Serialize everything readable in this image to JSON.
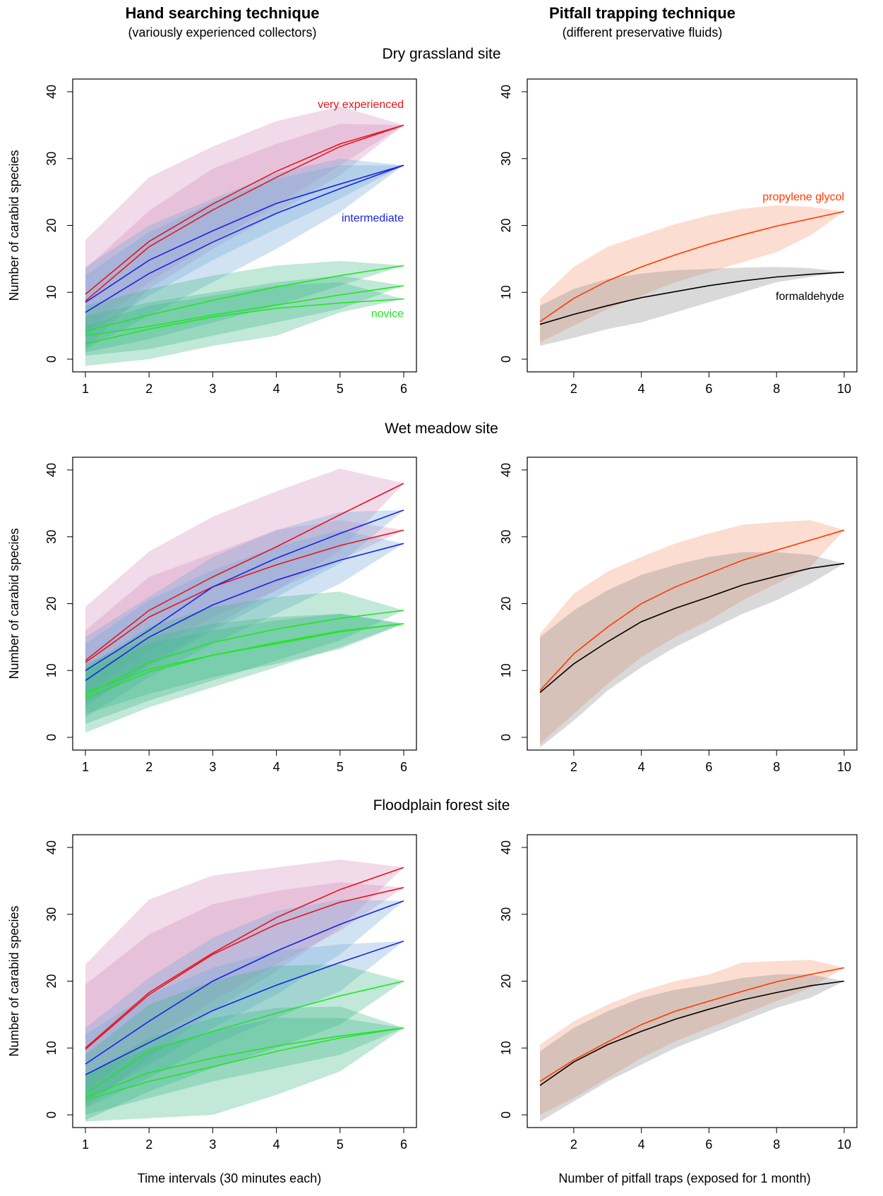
{
  "headers": {
    "left_title": "Hand searching technique",
    "left_subtitle": "(variously experienced collectors)",
    "right_title": "Pitfall trapping technique",
    "right_subtitle": "(different preservative fluids)"
  },
  "sites": [
    "Dry grassland site",
    "Wet meadow site",
    "Floodplain forest site"
  ],
  "xlabels": {
    "left": "Time intervals (30 minutes each)",
    "right": "Number of pitfall traps (exposed for 1 month)"
  },
  "colors": {
    "very_experienced": "#e8141c",
    "intermediate": "#1a22e6",
    "novice": "#22e622",
    "propylene_glycol": "#ff3a00",
    "formaldehyde": "#000000",
    "band_pink": "#d48cbc",
    "band_blue": "#6fa8d8",
    "band_green": "#3fb98a",
    "band_orange": "#f7956f",
    "band_gray": "#8a8a8a"
  },
  "chart_data": [
    {
      "type": "line",
      "panel": "dry-grassland-hand",
      "ylabel": "Number of carabid species",
      "x": [
        1,
        2,
        3,
        4,
        5,
        6
      ],
      "xlim": [
        1,
        6
      ],
      "xticks": [
        1,
        2,
        3,
        4,
        5,
        6
      ],
      "ylim": [
        0,
        40
      ],
      "yticks": [
        0,
        10,
        20,
        30,
        40
      ],
      "annotations": [
        {
          "text": "very experienced",
          "color": "very_experienced",
          "x": 6,
          "y": 38
        },
        {
          "text": "intermediate",
          "color": "intermediate",
          "x": 6,
          "y": 21
        },
        {
          "text": "novice",
          "color": "novice",
          "x": 6,
          "y": 6.7
        }
      ],
      "series": [
        {
          "color": "very_experienced",
          "band": "band_pink",
          "values": [
            9.7,
            17.6,
            23.2,
            28.1,
            32.2,
            35
          ],
          "lower": [
            1.5,
            10.5,
            16.5,
            21.8,
            27.5,
            35
          ],
          "upper": [
            17.8,
            27.2,
            31.8,
            35.6,
            37.8,
            35
          ]
        },
        {
          "color": "very_experienced",
          "band": "band_pink",
          "values": [
            8.7,
            16.8,
            22.3,
            27.2,
            31.8,
            35
          ],
          "lower": [
            4,
            11.5,
            17.5,
            23,
            29,
            35
          ],
          "upper": [
            13.5,
            22.2,
            28.5,
            32.2,
            35.2,
            35
          ]
        },
        {
          "color": "intermediate",
          "band": "band_blue",
          "values": [
            8.5,
            14.8,
            19.2,
            23.3,
            26.2,
            29
          ],
          "lower": [
            3.5,
            9.5,
            14.8,
            19.5,
            24,
            29
          ],
          "upper": [
            13.8,
            20,
            24,
            27.8,
            30,
            29
          ]
        },
        {
          "color": "intermediate",
          "band": "band_blue",
          "values": [
            7,
            12.8,
            17.5,
            21.8,
            25.5,
            29
          ],
          "lower": [
            1.5,
            6.5,
            11.5,
            16.5,
            22,
            29
          ],
          "upper": [
            12.5,
            19,
            23.5,
            27,
            29,
            29
          ]
        },
        {
          "color": "novice",
          "band": "band_green",
          "values": [
            4.2,
            6.6,
            8.8,
            10.8,
            12.5,
            14
          ],
          "lower": [
            1,
            3,
            5.5,
            8,
            11,
            14
          ],
          "upper": [
            8,
            10.5,
            12.5,
            14,
            14.7,
            14
          ]
        },
        {
          "color": "novice",
          "band": "band_green",
          "values": [
            3.5,
            4.9,
            6.6,
            8.1,
            9.6,
            11
          ],
          "lower": [
            0.5,
            1.5,
            3.5,
            5.5,
            7.5,
            11
          ],
          "upper": [
            6.5,
            8.5,
            10,
            11.5,
            12.5,
            11
          ]
        },
        {
          "color": "novice",
          "band": "band_green",
          "values": [
            2.3,
            4.5,
            6.3,
            7.6,
            8.4,
            9
          ],
          "lower": [
            -1,
            0,
            2,
            3.5,
            7,
            9
          ],
          "upper": [
            5,
            8,
            9.5,
            11,
            11.5,
            9
          ]
        }
      ]
    },
    {
      "type": "line",
      "panel": "dry-grassland-pitfall",
      "x": [
        1,
        2,
        3,
        4,
        5,
        6,
        7,
        8,
        9,
        10
      ],
      "xlim": [
        1,
        10
      ],
      "xticks": [
        2,
        4,
        6,
        8,
        10
      ],
      "ylim": [
        0,
        40
      ],
      "yticks": [
        0,
        10,
        20,
        30,
        40
      ],
      "annotations": [
        {
          "text": "propylene glycol",
          "color": "propylene_glycol",
          "x": 10,
          "y": 24.2
        },
        {
          "text": "formaldehyde",
          "color": "formaldehyde",
          "x": 10,
          "y": 9.3
        }
      ],
      "series": [
        {
          "color": "propylene_glycol",
          "band": "band_orange",
          "values": [
            5.6,
            9.1,
            11.7,
            13.8,
            15.6,
            17.2,
            18.6,
            19.9,
            21,
            22.1
          ],
          "lower": [
            2.5,
            5,
            7.5,
            9.5,
            11.5,
            13,
            14.5,
            16,
            18.5,
            22.1
          ],
          "upper": [
            9,
            13.8,
            16.8,
            18.5,
            20.2,
            21.5,
            22.5,
            23,
            22.8,
            22.1
          ]
        },
        {
          "color": "formaldehyde",
          "band": "band_gray",
          "values": [
            5.2,
            6.7,
            8,
            9.2,
            10.1,
            11,
            11.7,
            12.3,
            12.7,
            13
          ],
          "lower": [
            2,
            3.2,
            4.5,
            5.5,
            7,
            8.5,
            10,
            11.5,
            12.3,
            13
          ],
          "upper": [
            8,
            10.5,
            12,
            12.8,
            13.3,
            13.5,
            13.7,
            13.8,
            13.6,
            13
          ]
        }
      ]
    },
    {
      "type": "line",
      "panel": "wet-meadow-hand",
      "ylabel": "Number of carabid species",
      "x": [
        1,
        2,
        3,
        4,
        5,
        6
      ],
      "xlim": [
        1,
        6
      ],
      "xticks": [
        1,
        2,
        3,
        4,
        5,
        6
      ],
      "ylim": [
        0,
        40
      ],
      "yticks": [
        0,
        10,
        20,
        30,
        40
      ],
      "series": [
        {
          "color": "very_experienced",
          "band": "band_pink",
          "values": [
            11.5,
            19,
            24,
            28.5,
            33.3,
            38
          ],
          "lower": [
            4.5,
            11,
            16.5,
            22,
            28,
            38
          ],
          "upper": [
            19.5,
            27.8,
            33,
            36.8,
            40.2,
            38
          ]
        },
        {
          "color": "very_experienced",
          "band": "band_pink",
          "values": [
            11.2,
            18,
            22.5,
            25.8,
            28.7,
            31
          ],
          "lower": [
            6.5,
            13,
            18,
            22,
            26.5,
            31
          ],
          "upper": [
            16,
            24,
            27.5,
            31,
            32.5,
            31
          ]
        },
        {
          "color": "intermediate",
          "band": "band_blue",
          "values": [
            10,
            16,
            22.5,
            26.8,
            30.5,
            34
          ],
          "lower": [
            5,
            10.5,
            16,
            21,
            26,
            34
          ],
          "upper": [
            15,
            21,
            27,
            31,
            33.7,
            34
          ]
        },
        {
          "color": "intermediate",
          "band": "band_blue",
          "values": [
            8.5,
            15,
            19.8,
            23.5,
            26.5,
            29
          ],
          "lower": [
            3,
            9,
            14,
            18.5,
            23,
            29
          ],
          "upper": [
            14,
            20.5,
            25,
            28.5,
            31,
            29
          ]
        },
        {
          "color": "novice",
          "band": "band_green",
          "values": [
            6.3,
            11.2,
            14.2,
            16.2,
            17.8,
            19
          ],
          "lower": [
            2,
            5.5,
            8.5,
            11.5,
            14.5,
            19
          ],
          "upper": [
            10.5,
            16.5,
            19.5,
            21,
            21.8,
            19
          ]
        },
        {
          "color": "novice",
          "band": "band_green",
          "values": [
            6.7,
            10.2,
            12.3,
            14,
            15.8,
            17
          ],
          "lower": [
            3.5,
            6.5,
            9,
            11,
            13.2,
            17
          ],
          "upper": [
            10,
            14,
            16,
            17.5,
            18.5,
            17
          ]
        },
        {
          "color": "novice",
          "band": "band_green",
          "values": [
            5.8,
            9.8,
            12.3,
            14.2,
            15.9,
            17
          ],
          "lower": [
            0.7,
            4.5,
            7.5,
            10.5,
            13.5,
            17
          ],
          "upper": [
            11,
            15,
            17,
            18,
            18.5,
            17
          ]
        }
      ]
    },
    {
      "type": "line",
      "panel": "wet-meadow-pitfall",
      "x": [
        1,
        2,
        3,
        4,
        5,
        6,
        7,
        8,
        9,
        10
      ],
      "xlim": [
        1,
        10
      ],
      "xticks": [
        2,
        4,
        6,
        8,
        10
      ],
      "ylim": [
        0,
        40
      ],
      "yticks": [
        0,
        10,
        20,
        30,
        40
      ],
      "series": [
        {
          "color": "propylene_glycol",
          "band": "band_orange",
          "values": [
            7,
            12.5,
            16.5,
            20,
            22.5,
            24.5,
            26.5,
            28,
            29.5,
            31
          ],
          "lower": [
            -1,
            3.5,
            8,
            12,
            15,
            17.5,
            20.5,
            23,
            25.5,
            31
          ],
          "upper": [
            15.5,
            21.5,
            24.8,
            27,
            29,
            30.5,
            31.8,
            32.2,
            32.5,
            31
          ]
        },
        {
          "color": "formaldehyde",
          "band": "band_gray",
          "values": [
            6.7,
            11,
            14.3,
            17.3,
            19.3,
            21,
            22.8,
            24.1,
            25.3,
            26
          ],
          "lower": [
            -1.5,
            2.5,
            7,
            10.5,
            13.5,
            16,
            18.5,
            20.5,
            23,
            26
          ],
          "upper": [
            15,
            19,
            22,
            24.3,
            25.8,
            27,
            27.7,
            27.7,
            27.3,
            26
          ]
        }
      ]
    },
    {
      "type": "line",
      "panel": "floodplain-forest-hand",
      "ylabel": "Number of carabid species",
      "x": [
        1,
        2,
        3,
        4,
        5,
        6
      ],
      "xlim": [
        1,
        6
      ],
      "xticks": [
        1,
        2,
        3,
        4,
        5,
        6
      ],
      "ylim": [
        0,
        40
      ],
      "yticks": [
        0,
        10,
        20,
        30,
        40
      ],
      "series": [
        {
          "color": "very_experienced",
          "band": "band_pink",
          "values": [
            10,
            18.3,
            24.2,
            29.5,
            33.7,
            37
          ],
          "lower": [
            1,
            8.5,
            15.5,
            21.5,
            28,
            37
          ],
          "upper": [
            22.5,
            32.2,
            35.8,
            37,
            38.2,
            37
          ]
        },
        {
          "color": "very_experienced",
          "band": "band_pink",
          "values": [
            9.8,
            18,
            24,
            28.5,
            31.8,
            34
          ],
          "lower": [
            3.5,
            11,
            17,
            22.5,
            27.5,
            34
          ],
          "upper": [
            19.5,
            27,
            31.5,
            33.5,
            34.8,
            34
          ]
        },
        {
          "color": "intermediate",
          "band": "band_blue",
          "values": [
            7.6,
            14,
            20,
            24.5,
            28.5,
            32
          ],
          "lower": [
            2,
            7.5,
            13,
            18,
            24,
            32
          ],
          "upper": [
            13,
            20.5,
            26.5,
            30.5,
            32.2,
            32
          ]
        },
        {
          "color": "intermediate",
          "band": "band_blue",
          "values": [
            6,
            10.8,
            15.6,
            19.4,
            22.8,
            26
          ],
          "lower": [
            1,
            5.5,
            10.5,
            14.5,
            18.5,
            26
          ],
          "upper": [
            12,
            18,
            22,
            24.5,
            25.5,
            26
          ]
        },
        {
          "color": "novice",
          "band": "band_green",
          "values": [
            3.2,
            9.5,
            12.5,
            15.2,
            17.8,
            20
          ],
          "lower": [
            -0.8,
            3.5,
            7,
            10,
            13.5,
            20
          ],
          "upper": [
            9,
            16.5,
            20,
            22.3,
            22.5,
            20
          ]
        },
        {
          "color": "novice",
          "band": "band_green",
          "values": [
            2.6,
            6.3,
            8.5,
            10.3,
            11.8,
            13
          ],
          "lower": [
            0,
            2.5,
            5,
            7,
            9,
            13
          ],
          "upper": [
            6,
            10,
            12.5,
            14.5,
            14.5,
            13
          ]
        },
        {
          "color": "novice",
          "band": "band_green",
          "values": [
            2.2,
            5,
            7.2,
            9.5,
            11.5,
            13
          ],
          "lower": [
            -1,
            -0.5,
            0,
            3,
            6.5,
            13
          ],
          "upper": [
            6,
            11.5,
            14.5,
            16,
            16.2,
            13
          ]
        }
      ]
    },
    {
      "type": "line",
      "panel": "floodplain-forest-pitfall",
      "x": [
        1,
        2,
        3,
        4,
        5,
        6,
        7,
        8,
        9,
        10
      ],
      "xlim": [
        1,
        10
      ],
      "xticks": [
        2,
        4,
        6,
        8,
        10
      ],
      "ylim": [
        0,
        40
      ],
      "yticks": [
        0,
        10,
        20,
        30,
        40
      ],
      "series": [
        {
          "color": "propylene_glycol",
          "band": "band_orange",
          "values": [
            5,
            8.2,
            10.9,
            13.5,
            15.5,
            17,
            18.5,
            19.9,
            21,
            22
          ],
          "lower": [
            0,
            2.5,
            5.5,
            8.5,
            11,
            13,
            15,
            17,
            19,
            22
          ],
          "upper": [
            10.5,
            14,
            16.5,
            18.5,
            20,
            21,
            22.8,
            23,
            23.2,
            22
          ]
        },
        {
          "color": "formaldehyde",
          "band": "band_gray",
          "values": [
            4.4,
            7.9,
            10.5,
            12.5,
            14.3,
            15.8,
            17.2,
            18.3,
            19.3,
            20
          ],
          "lower": [
            -1,
            2,
            5,
            7.5,
            10,
            12,
            14,
            16,
            17.5,
            20
          ],
          "upper": [
            9.5,
            13,
            15.5,
            17.5,
            18.7,
            19.5,
            20.5,
            21,
            21,
            20
          ]
        }
      ]
    }
  ]
}
